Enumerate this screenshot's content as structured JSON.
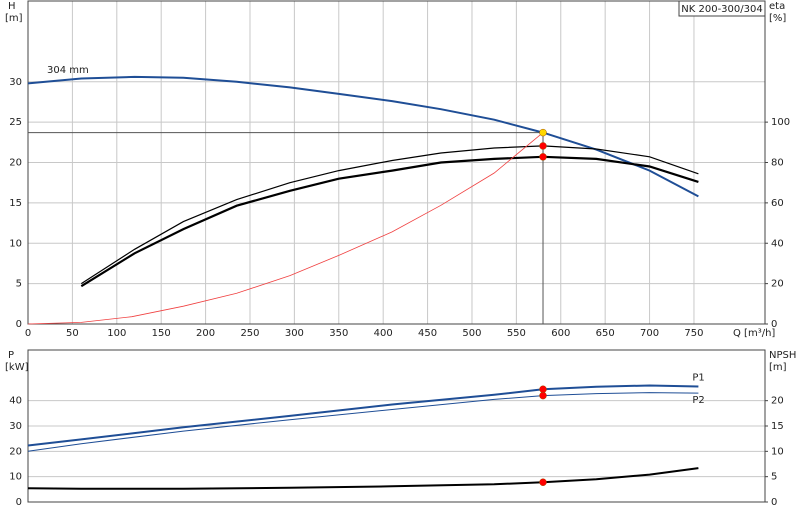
{
  "chart_data": [
    {
      "type": "line",
      "title": "NK 200-300/304",
      "ylabel": "H",
      "yunit": "[m]",
      "y2label": "eta",
      "y2unit": "[%]",
      "xlabel": "Q [m³/h]",
      "annotations": [
        "304 mm"
      ],
      "xlim": [
        0,
        830
      ],
      "xticks": [
        0,
        50,
        100,
        150,
        200,
        250,
        300,
        350,
        400,
        450,
        500,
        550,
        600,
        650,
        700,
        750
      ],
      "ylim": [
        0,
        40
      ],
      "yticks": [
        0,
        5,
        10,
        15,
        20,
        25,
        30
      ],
      "y2lim": [
        0,
        160
      ],
      "y2ticks": [
        0,
        20,
        40,
        60,
        80,
        100
      ],
      "grid": true,
      "series": [
        {
          "color": "#1f4e96",
          "width": 2,
          "axis": "y",
          "x": [
            0,
            60,
            120,
            175,
            235,
            295,
            350,
            410,
            465,
            525,
            580,
            640,
            700,
            755
          ],
          "values": [
            29.8,
            30.4,
            30.6,
            30.5,
            30.0,
            29.3,
            28.5,
            27.6,
            26.6,
            25.3,
            23.7,
            21.6,
            19.0,
            15.8
          ]
        },
        {
          "color": "#000000",
          "width": 1.2,
          "axis": "y2",
          "x": [
            60,
            120,
            175,
            235,
            295,
            350,
            410,
            465,
            525,
            580,
            640,
            700,
            755
          ],
          "values": [
            20,
            37,
            50.7,
            61.6,
            70,
            76,
            81,
            84.7,
            87.2,
            88.2,
            86.7,
            82.8,
            74.4
          ]
        },
        {
          "color": "#000000",
          "width": 2.2,
          "axis": "y2",
          "x": [
            60,
            120,
            175,
            235,
            295,
            350,
            410,
            465,
            525,
            580,
            640,
            700,
            755
          ],
          "values": [
            18.7,
            35,
            47,
            58.6,
            66,
            72,
            76,
            80,
            81.8,
            82.8,
            81.8,
            78,
            70.4
          ]
        },
        {
          "color": "#f04040",
          "width": 0.8,
          "axis": "y",
          "x": [
            0,
            60,
            117,
            175,
            235,
            295,
            350,
            410,
            465,
            525,
            580
          ],
          "values": [
            0,
            0.2,
            0.9,
            2.2,
            3.8,
            6.0,
            8.5,
            11.4,
            14.7,
            18.7,
            23.7
          ]
        }
      ],
      "points": [
        {
          "x": 580,
          "y": 23.7,
          "axis": "y",
          "color": "#ffd700"
        },
        {
          "x": 580,
          "y": 88.2,
          "axis": "y2",
          "color": "#ff0000"
        },
        {
          "x": 580,
          "y": 82.8,
          "axis": "y2",
          "color": "#ff0000"
        }
      ]
    },
    {
      "type": "line",
      "ylabel": "P",
      "yunit": "[kW]",
      "y2label": "NPSH",
      "y2unit": "[m]",
      "xlim": [
        0,
        830
      ],
      "ylim": [
        0,
        60
      ],
      "yticks": [
        0,
        10,
        20,
        30,
        40
      ],
      "y2lim": [
        0,
        30
      ],
      "y2ticks": [
        0,
        5,
        10,
        15,
        20
      ],
      "grid": true,
      "series": [
        {
          "name": "P1",
          "color": "#1f4e96",
          "width": 2,
          "axis": "y",
          "x": [
            0,
            60,
            175,
            295,
            410,
            525,
            580,
            640,
            700,
            755
          ],
          "values": [
            22.3,
            24.7,
            29.5,
            34,
            38.5,
            42.3,
            44.5,
            45.5,
            46,
            45.6
          ]
        },
        {
          "name": "P2",
          "color": "#1f4e96",
          "width": 1,
          "axis": "y",
          "x": [
            0,
            60,
            175,
            295,
            410,
            525,
            580,
            640,
            700,
            755
          ],
          "values": [
            20,
            23,
            28,
            32.5,
            36.5,
            40.5,
            42,
            42.8,
            43.2,
            43
          ]
        },
        {
          "color": "#000000",
          "width": 2,
          "axis": "y2",
          "x": [
            0,
            60,
            175,
            295,
            410,
            525,
            580,
            640,
            700,
            755
          ],
          "values": [
            2.7,
            2.6,
            2.6,
            2.8,
            3.1,
            3.5,
            3.9,
            4.5,
            5.4,
            6.7
          ]
        }
      ],
      "points": [
        {
          "x": 580,
          "y": 44.5,
          "axis": "y",
          "color": "#ff0000"
        },
        {
          "x": 580,
          "y": 42,
          "axis": "y",
          "color": "#ff0000"
        },
        {
          "x": 580,
          "y": 3.9,
          "axis": "y2",
          "color": "#ff0000"
        }
      ]
    }
  ]
}
